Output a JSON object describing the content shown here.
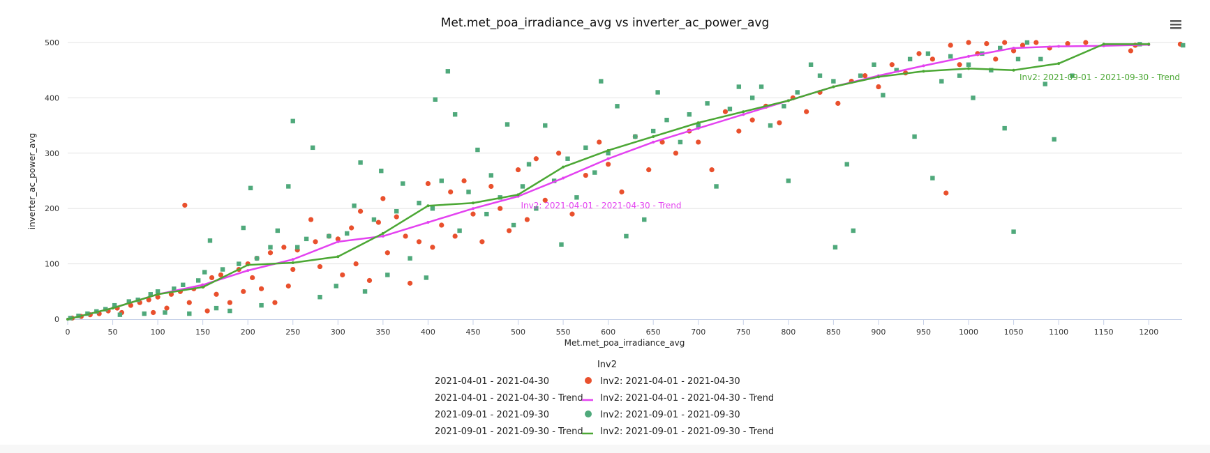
{
  "chart_data": {
    "type": "scatter",
    "title": "Met.met_poa_irradiance_avg vs inverter_ac_power_avg",
    "xlabel": "Met.met_poa_irradiance_avg",
    "ylabel": "inverter_ac_power_avg",
    "xlim": [
      0,
      1237
    ],
    "ylim": [
      0,
      500
    ],
    "xticks": [
      0,
      50,
      100,
      150,
      200,
      250,
      300,
      350,
      400,
      450,
      500,
      550,
      600,
      650,
      700,
      750,
      800,
      850,
      900,
      950,
      1000,
      1050,
      1100,
      1150,
      1200
    ],
    "yticks": [
      0,
      100,
      200,
      300,
      400,
      500
    ],
    "grid": true,
    "legend": {
      "title": "Inv2",
      "placement": "bottom-center",
      "entries": [
        {
          "group": "2021-04-01 - 2021-04-30",
          "label": "Inv2: 2021-04-01 - 2021-04-30",
          "symbol": "circle",
          "color": "#e9502d"
        },
        {
          "group": "2021-04-01 - 2021-04-30 - Trend",
          "label": "Inv2: 2021-04-01 - 2021-04-30 - Trend",
          "symbol": "line",
          "color": "#e342f0"
        },
        {
          "group": "2021-09-01 - 2021-09-30",
          "label": "Inv2: 2021-09-01 - 2021-09-30",
          "symbol": "circle",
          "color": "#4fa97b"
        },
        {
          "group": "2021-09-01 - 2021-09-30 - Trend",
          "label": "Inv2: 2021-09-01 - 2021-09-30 - Trend",
          "symbol": "line",
          "color": "#4ba734"
        }
      ]
    },
    "series": [
      {
        "name": "Inv2: 2021-04-01 - 2021-04-30",
        "kind": "scatter",
        "marker": "circle",
        "color": "#e9502d",
        "points": [
          [
            5,
            2
          ],
          [
            15,
            5
          ],
          [
            25,
            8
          ],
          [
            35,
            10
          ],
          [
            45,
            15
          ],
          [
            55,
            20
          ],
          [
            60,
            12
          ],
          [
            70,
            25
          ],
          [
            80,
            30
          ],
          [
            90,
            35
          ],
          [
            95,
            12
          ],
          [
            100,
            40
          ],
          [
            110,
            20
          ],
          [
            115,
            45
          ],
          [
            125,
            50
          ],
          [
            130,
            206
          ],
          [
            135,
            30
          ],
          [
            140,
            55
          ],
          [
            150,
            60
          ],
          [
            155,
            15
          ],
          [
            160,
            75
          ],
          [
            165,
            45
          ],
          [
            170,
            80
          ],
          [
            180,
            30
          ],
          [
            190,
            90
          ],
          [
            195,
            50
          ],
          [
            200,
            100
          ],
          [
            205,
            75
          ],
          [
            210,
            110
          ],
          [
            215,
            55
          ],
          [
            225,
            120
          ],
          [
            230,
            30
          ],
          [
            240,
            130
          ],
          [
            245,
            60
          ],
          [
            250,
            90
          ],
          [
            255,
            125
          ],
          [
            270,
            180
          ],
          [
            275,
            140
          ],
          [
            280,
            95
          ],
          [
            290,
            150
          ],
          [
            300,
            145
          ],
          [
            305,
            80
          ],
          [
            315,
            165
          ],
          [
            320,
            100
          ],
          [
            325,
            195
          ],
          [
            335,
            70
          ],
          [
            345,
            175
          ],
          [
            350,
            218
          ],
          [
            355,
            120
          ],
          [
            365,
            185
          ],
          [
            375,
            150
          ],
          [
            380,
            65
          ],
          [
            390,
            140
          ],
          [
            400,
            245
          ],
          [
            405,
            130
          ],
          [
            415,
            170
          ],
          [
            425,
            230
          ],
          [
            430,
            150
          ],
          [
            440,
            250
          ],
          [
            450,
            190
          ],
          [
            460,
            140
          ],
          [
            470,
            240
          ],
          [
            480,
            200
          ],
          [
            490,
            160
          ],
          [
            500,
            270
          ],
          [
            510,
            180
          ],
          [
            520,
            290
          ],
          [
            530,
            215
          ],
          [
            545,
            300
          ],
          [
            560,
            190
          ],
          [
            575,
            260
          ],
          [
            590,
            320
          ],
          [
            600,
            280
          ],
          [
            615,
            230
          ],
          [
            630,
            330
          ],
          [
            645,
            270
          ],
          [
            660,
            320
          ],
          [
            675,
            300
          ],
          [
            690,
            340
          ],
          [
            700,
            320
          ],
          [
            715,
            270
          ],
          [
            730,
            375
          ],
          [
            745,
            340
          ],
          [
            760,
            360
          ],
          [
            775,
            385
          ],
          [
            790,
            355
          ],
          [
            805,
            400
          ],
          [
            820,
            375
          ],
          [
            835,
            410
          ],
          [
            855,
            390
          ],
          [
            870,
            430
          ],
          [
            885,
            440
          ],
          [
            900,
            420
          ],
          [
            915,
            460
          ],
          [
            930,
            445
          ],
          [
            945,
            480
          ],
          [
            960,
            470
          ],
          [
            975,
            228
          ],
          [
            980,
            495
          ],
          [
            990,
            460
          ],
          [
            1000,
            500
          ],
          [
            1010,
            480
          ],
          [
            1020,
            498
          ],
          [
            1030,
            470
          ],
          [
            1040,
            500
          ],
          [
            1050,
            485
          ],
          [
            1060,
            495
          ],
          [
            1075,
            500
          ],
          [
            1090,
            490
          ],
          [
            1110,
            498
          ],
          [
            1130,
            500
          ],
          [
            1180,
            485
          ],
          [
            1185,
            495
          ],
          [
            1235,
            497
          ]
        ]
      },
      {
        "name": "Inv2: 2021-04-01 - 2021-04-30 - Trend",
        "kind": "line",
        "color": "#e342f0",
        "label": "Inv2: 2021-04-01 - 2021-04-30 - Trend",
        "points": [
          [
            0,
            0
          ],
          [
            50,
            20
          ],
          [
            100,
            45
          ],
          [
            150,
            62
          ],
          [
            200,
            88
          ],
          [
            250,
            108
          ],
          [
            300,
            140
          ],
          [
            350,
            150
          ],
          [
            400,
            175
          ],
          [
            450,
            200
          ],
          [
            500,
            222
          ],
          [
            550,
            255
          ],
          [
            600,
            290
          ],
          [
            650,
            320
          ],
          [
            700,
            345
          ],
          [
            750,
            370
          ],
          [
            800,
            395
          ],
          [
            850,
            420
          ],
          [
            900,
            440
          ],
          [
            950,
            458
          ],
          [
            1000,
            475
          ],
          [
            1050,
            490
          ],
          [
            1100,
            493
          ],
          [
            1150,
            494
          ],
          [
            1200,
            496
          ]
        ]
      },
      {
        "name": "Inv2: 2021-09-01 - 2021-09-30",
        "kind": "scatter",
        "marker": "square",
        "color": "#4fa97b",
        "points": [
          [
            3,
            2
          ],
          [
            12,
            6
          ],
          [
            22,
            10
          ],
          [
            32,
            14
          ],
          [
            42,
            18
          ],
          [
            52,
            25
          ],
          [
            58,
            8
          ],
          [
            68,
            32
          ],
          [
            78,
            35
          ],
          [
            85,
            10
          ],
          [
            92,
            45
          ],
          [
            100,
            50
          ],
          [
            108,
            12
          ],
          [
            118,
            55
          ],
          [
            128,
            62
          ],
          [
            135,
            10
          ],
          [
            145,
            70
          ],
          [
            152,
            85
          ],
          [
            158,
            142
          ],
          [
            165,
            20
          ],
          [
            172,
            90
          ],
          [
            180,
            15
          ],
          [
            190,
            100
          ],
          [
            195,
            165
          ],
          [
            203,
            237
          ],
          [
            210,
            110
          ],
          [
            215,
            25
          ],
          [
            225,
            130
          ],
          [
            233,
            160
          ],
          [
            245,
            240
          ],
          [
            250,
            358
          ],
          [
            255,
            130
          ],
          [
            265,
            145
          ],
          [
            272,
            310
          ],
          [
            280,
            40
          ],
          [
            290,
            150
          ],
          [
            298,
            60
          ],
          [
            310,
            155
          ],
          [
            318,
            205
          ],
          [
            325,
            283
          ],
          [
            330,
            50
          ],
          [
            340,
            180
          ],
          [
            348,
            268
          ],
          [
            355,
            80
          ],
          [
            365,
            195
          ],
          [
            372,
            245
          ],
          [
            380,
            110
          ],
          [
            390,
            210
          ],
          [
            398,
            75
          ],
          [
            405,
            200
          ],
          [
            408,
            397
          ],
          [
            415,
            250
          ],
          [
            422,
            448
          ],
          [
            430,
            370
          ],
          [
            435,
            160
          ],
          [
            445,
            230
          ],
          [
            455,
            306
          ],
          [
            465,
            190
          ],
          [
            470,
            260
          ],
          [
            480,
            220
          ],
          [
            488,
            352
          ],
          [
            495,
            170
          ],
          [
            505,
            240
          ],
          [
            512,
            280
          ],
          [
            520,
            200
          ],
          [
            530,
            350
          ],
          [
            540,
            250
          ],
          [
            548,
            135
          ],
          [
            555,
            290
          ],
          [
            565,
            220
          ],
          [
            575,
            310
          ],
          [
            585,
            265
          ],
          [
            592,
            430
          ],
          [
            600,
            300
          ],
          [
            610,
            385
          ],
          [
            620,
            150
          ],
          [
            630,
            330
          ],
          [
            640,
            180
          ],
          [
            650,
            340
          ],
          [
            655,
            410
          ],
          [
            665,
            360
          ],
          [
            680,
            320
          ],
          [
            690,
            370
          ],
          [
            700,
            350
          ],
          [
            710,
            390
          ],
          [
            720,
            240
          ],
          [
            735,
            380
          ],
          [
            745,
            420
          ],
          [
            760,
            400
          ],
          [
            770,
            420
          ],
          [
            780,
            350
          ],
          [
            795,
            385
          ],
          [
            800,
            250
          ],
          [
            810,
            410
          ],
          [
            825,
            460
          ],
          [
            835,
            440
          ],
          [
            850,
            430
          ],
          [
            852,
            130
          ],
          [
            865,
            280
          ],
          [
            872,
            160
          ],
          [
            880,
            440
          ],
          [
            895,
            460
          ],
          [
            905,
            405
          ],
          [
            920,
            450
          ],
          [
            935,
            470
          ],
          [
            940,
            330
          ],
          [
            955,
            480
          ],
          [
            960,
            255
          ],
          [
            970,
            430
          ],
          [
            980,
            475
          ],
          [
            990,
            440
          ],
          [
            1000,
            460
          ],
          [
            1005,
            400
          ],
          [
            1015,
            480
          ],
          [
            1025,
            450
          ],
          [
            1035,
            490
          ],
          [
            1040,
            345
          ],
          [
            1050,
            158
          ],
          [
            1055,
            470
          ],
          [
            1065,
            500
          ],
          [
            1080,
            470
          ],
          [
            1085,
            425
          ],
          [
            1095,
            325
          ],
          [
            1115,
            440
          ],
          [
            1190,
            497
          ],
          [
            1238,
            495
          ]
        ]
      },
      {
        "name": "Inv2: 2021-09-01 - 2021-09-30 - Trend",
        "kind": "line",
        "color": "#4ba734",
        "label": "Inv2: 2021-09-01 - 2021-09-30 - Trend",
        "points": [
          [
            0,
            0
          ],
          [
            50,
            20
          ],
          [
            100,
            45
          ],
          [
            150,
            58
          ],
          [
            200,
            98
          ],
          [
            250,
            102
          ],
          [
            300,
            113
          ],
          [
            350,
            155
          ],
          [
            400,
            205
          ],
          [
            450,
            210
          ],
          [
            500,
            225
          ],
          [
            550,
            275
          ],
          [
            600,
            305
          ],
          [
            650,
            330
          ],
          [
            700,
            355
          ],
          [
            750,
            375
          ],
          [
            800,
            395
          ],
          [
            850,
            420
          ],
          [
            900,
            438
          ],
          [
            950,
            448
          ],
          [
            1000,
            453
          ],
          [
            1050,
            450
          ],
          [
            1100,
            462
          ],
          [
            1150,
            497
          ],
          [
            1200,
            497
          ]
        ]
      }
    ]
  }
}
